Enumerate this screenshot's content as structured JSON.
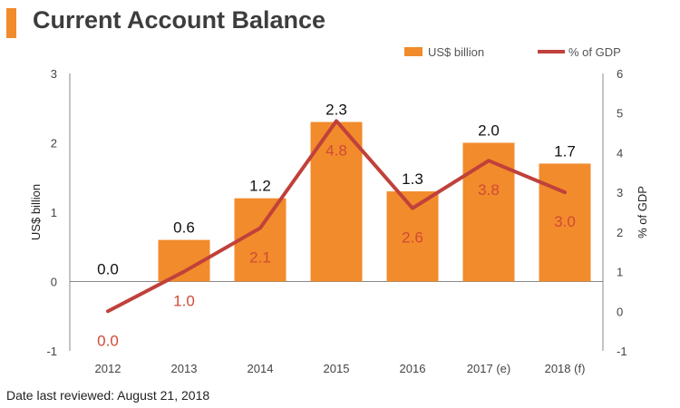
{
  "header": {
    "title": "Current Account Balance"
  },
  "legend": {
    "bar_label": "US$ billion",
    "line_label": "% of GDP"
  },
  "footnote": "Date last reviewed: August 21, 2018",
  "colors": {
    "accent": "#f28b2b",
    "bar": "#f28b2b",
    "line": "#c0413b",
    "line_label": "#d04a36",
    "text": "#3d3d3d"
  },
  "chart_data": {
    "type": "bar",
    "categories": [
      "2012",
      "2013",
      "2014",
      "2015",
      "2016",
      "2017 (e)",
      "2018 (f)"
    ],
    "series": [
      {
        "name": "US$ billion",
        "type": "bar",
        "axis": "left",
        "values": [
          0.0,
          0.6,
          1.2,
          2.3,
          1.3,
          2.0,
          1.7
        ],
        "labels": [
          "0.0",
          "0.6",
          "1.2",
          "2.3",
          "1.3",
          "2.0",
          "1.7"
        ]
      },
      {
        "name": "% of GDP",
        "type": "line",
        "axis": "right",
        "values": [
          0.0,
          1.0,
          2.1,
          4.8,
          2.6,
          3.8,
          3.0
        ],
        "labels": [
          "0.0",
          "1.0",
          "2.1",
          "4.8",
          "2.6",
          "3.8",
          "3.0"
        ]
      }
    ],
    "ylabel_left": "US$ billion",
    "ylabel_right": "% of GDP",
    "ylim_left": [
      -1,
      3
    ],
    "ylim_right": [
      -1,
      6
    ],
    "yticks_left": [
      "-1",
      "0",
      "1",
      "2",
      "3"
    ],
    "yticks_right": [
      "-1",
      "0",
      "1",
      "2",
      "3",
      "4",
      "5",
      "6"
    ],
    "grid": false,
    "legend_position": "top-right"
  }
}
